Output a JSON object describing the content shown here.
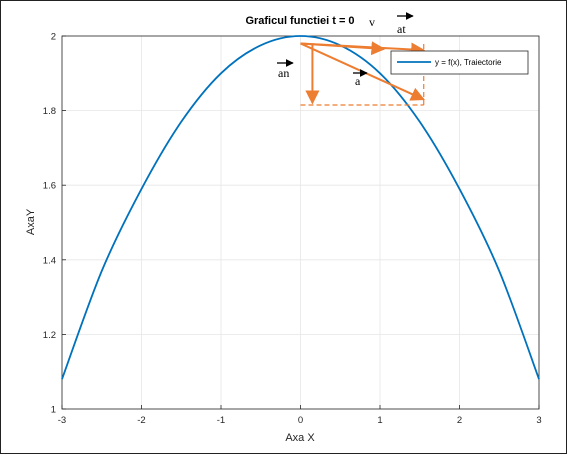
{
  "chart_data": {
    "type": "line",
    "title": "Graficul functiei t = 0",
    "xlabel": "Axa X",
    "ylabel": "AxaY",
    "xlim": [
      -3,
      3
    ],
    "ylim": [
      1,
      2
    ],
    "xticks": [
      "-3",
      "-2",
      "-1",
      "0",
      "1",
      "2",
      "3"
    ],
    "yticks": [
      "1",
      "1.2",
      "1.4",
      "1.6",
      "1.8",
      "2"
    ],
    "grid": true,
    "legend_position": "top-right",
    "series": [
      {
        "name": "y = f(x), Traiectorie",
        "color": "#0072BD",
        "x": [
          -3,
          -2.5,
          -2,
          -1.5,
          -1,
          -0.5,
          0,
          0.5,
          1,
          1.5,
          2,
          2.5,
          3
        ],
        "y": [
          1.08,
          1.37,
          1.59,
          1.77,
          1.9,
          1.975,
          2.0,
          1.975,
          1.9,
          1.77,
          1.59,
          1.37,
          1.08
        ]
      }
    ],
    "vectors": [
      {
        "label": "v",
        "color": "#ED7D31",
        "from": [
          0,
          1.98
        ],
        "to": [
          1.05,
          1.965
        ]
      },
      {
        "label": "at",
        "color": "#ED7D31",
        "from": [
          0,
          1.98
        ],
        "to": [
          1.55,
          1.962
        ]
      },
      {
        "label": "a",
        "color": "#ED7D31",
        "from": [
          0,
          1.98
        ],
        "to": [
          1.55,
          1.83
        ]
      },
      {
        "label": "an",
        "color": "#ED7D31",
        "from": [
          0.15,
          1.98
        ],
        "to": [
          0.15,
          1.82
        ]
      }
    ],
    "dashed_guides": {
      "color": "#ED7D31",
      "horizontal": {
        "x": [
          0,
          1.55
        ],
        "y": 1.815
      },
      "vertical": {
        "x": 1.55,
        "y": [
          1.815,
          1.98
        ]
      }
    }
  }
}
